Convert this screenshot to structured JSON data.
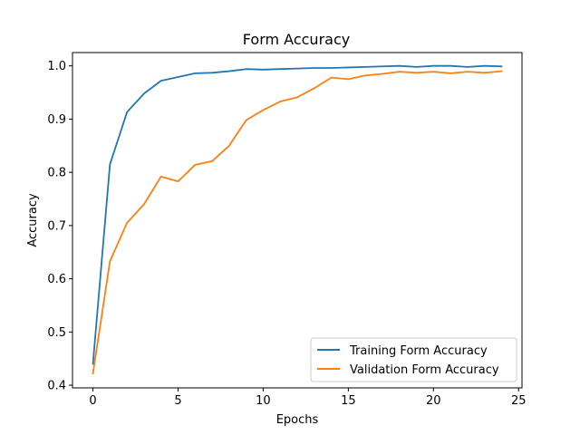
{
  "chart_data": {
    "type": "line",
    "title": "Form Accuracy",
    "xlabel": "Epochs",
    "ylabel": "Accuracy",
    "xlim": [
      -1.2,
      25.2
    ],
    "ylim": [
      0.395,
      1.025
    ],
    "xticks": [
      0,
      5,
      10,
      15,
      20,
      25
    ],
    "yticks": [
      0.4,
      0.5,
      0.6,
      0.7,
      0.8,
      0.9,
      1.0
    ],
    "xtick_labels": [
      "0",
      "5",
      "10",
      "15",
      "20",
      "25"
    ],
    "ytick_labels": [
      "0.4",
      "0.5",
      "0.6",
      "0.7",
      "0.8",
      "0.9",
      "1.0"
    ],
    "grid": false,
    "legend_position": "lower-right",
    "x": [
      0,
      1,
      2,
      3,
      4,
      5,
      6,
      7,
      8,
      9,
      10,
      11,
      12,
      13,
      14,
      15,
      16,
      17,
      18,
      19,
      20,
      21,
      22,
      23,
      24
    ],
    "series": [
      {
        "name": "Training Form Accuracy",
        "color": "#1f77b4",
        "values": [
          0.44,
          0.815,
          0.913,
          0.948,
          0.972,
          0.979,
          0.986,
          0.987,
          0.99,
          0.994,
          0.993,
          0.994,
          0.995,
          0.996,
          0.996,
          0.997,
          0.998,
          0.999,
          1.0,
          0.998,
          1.0,
          1.0,
          0.998,
          1.0,
          0.999
        ]
      },
      {
        "name": "Validation Form Accuracy",
        "color": "#ff7f0e",
        "values": [
          0.422,
          0.633,
          0.705,
          0.74,
          0.792,
          0.783,
          0.814,
          0.821,
          0.85,
          0.898,
          0.917,
          0.933,
          0.941,
          0.958,
          0.978,
          0.975,
          0.982,
          0.985,
          0.989,
          0.987,
          0.989,
          0.986,
          0.989,
          0.987,
          0.99
        ]
      }
    ]
  }
}
